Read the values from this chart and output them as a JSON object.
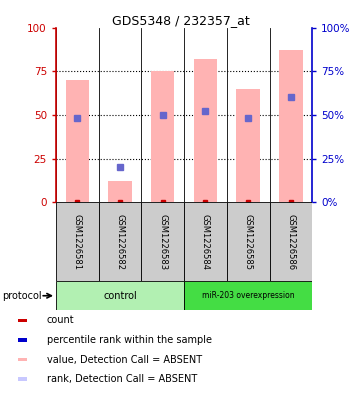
{
  "title": "GDS5348 / 232357_at",
  "samples": [
    "GSM1226581",
    "GSM1226582",
    "GSM1226583",
    "GSM1226584",
    "GSM1226585",
    "GSM1226586"
  ],
  "pink_bar_heights": [
    70,
    12,
    75,
    82,
    65,
    87
  ],
  "blue_dot_y": [
    48,
    20,
    50,
    52,
    48,
    60
  ],
  "blue_dot_visible": [
    true,
    true,
    true,
    true,
    true,
    true
  ],
  "red_dot_y": [
    0,
    0,
    0,
    0,
    0,
    0
  ],
  "groups": [
    {
      "label": "control",
      "start": 0,
      "end": 3,
      "color": "#b2f0b2"
    },
    {
      "label": "miR-203 overexpression",
      "start": 3,
      "end": 6,
      "color": "#44dd44"
    }
  ],
  "ylim": [
    0,
    100
  ],
  "yticks": [
    0,
    25,
    50,
    75,
    100
  ],
  "left_axis_color": "#cc0000",
  "right_axis_color": "#0000cc",
  "pink_bar_color": "#ffb3b3",
  "blue_dot_color": "#6666cc",
  "red_dot_color": "#cc0000",
  "grid_color": "#000000",
  "bg_color": "#ffffff",
  "sample_box_color": "#cccccc",
  "legend_colors": [
    "#cc0000",
    "#0000cc",
    "#ffb3b3",
    "#c8c8ff"
  ],
  "legend_labels": [
    "count",
    "percentile rank within the sample",
    "value, Detection Call = ABSENT",
    "rank, Detection Call = ABSENT"
  ]
}
